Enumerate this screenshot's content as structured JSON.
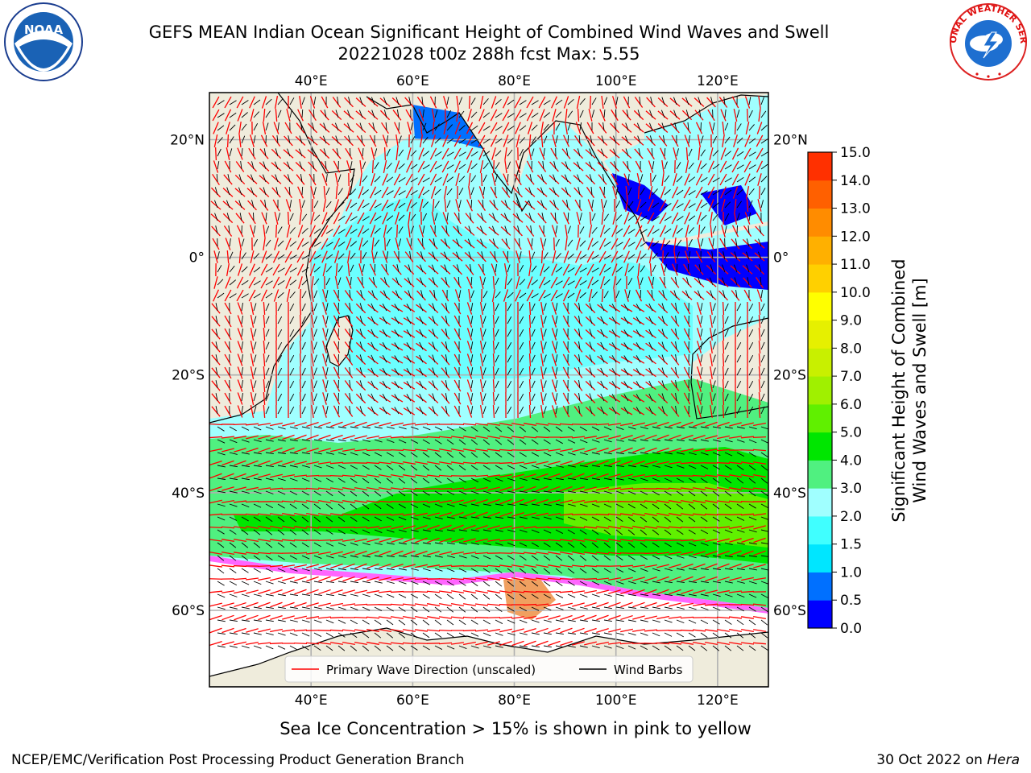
{
  "title": {
    "line1": "GEFS MEAN Indian Ocean Significant Height of Combined Wind Waves and Swell",
    "line2": "20221028 t00z 288h fcst   Max: 5.55"
  },
  "logos": {
    "left": {
      "name": "noaa-logo",
      "text": "NOAA",
      "ring_text": "NATIONAL OCEANIC AND ATMOSPHERIC ADMINISTRATION · U.S. DEPARTMENT OF COMMERCE"
    },
    "right": {
      "name": "nws-logo",
      "ring_text": "NATIONAL WEATHER SERVICE"
    }
  },
  "map": {
    "lon_range": [
      20,
      130
    ],
    "lat_range": [
      -73,
      28
    ],
    "lon_ticks": [
      {
        "value": 40,
        "label": "40°E"
      },
      {
        "value": 60,
        "label": "60°E"
      },
      {
        "value": 80,
        "label": "80°E"
      },
      {
        "value": 100,
        "label": "100°E"
      },
      {
        "value": 120,
        "label": "120°E"
      }
    ],
    "lat_ticks": [
      {
        "value": 20,
        "label": "20°N"
      },
      {
        "value": 0,
        "label": "0°"
      },
      {
        "value": -20,
        "label": "20°S"
      },
      {
        "value": -40,
        "label": "40°S"
      },
      {
        "value": -60,
        "label": "60°S"
      }
    ],
    "land_color": "#efecdc",
    "grid": true,
    "legend": {
      "position": "bottom-center",
      "items": [
        {
          "label": "Primary Wave Direction (unscaled)",
          "color": "#ff0000"
        },
        {
          "label": "Wind Barbs",
          "color": "#000000"
        }
      ]
    }
  },
  "colorbar": {
    "label_line1": "Significant Height of Combined",
    "label_line2": "Wind Waves and Swell [m]",
    "ticks": [
      "0.0",
      "0.5",
      "1.0",
      "1.5",
      "2.0",
      "3.0",
      "4.0",
      "5.0",
      "6.0",
      "7.0",
      "8.0",
      "9.0",
      "10.0",
      "11.0",
      "12.0",
      "13.0",
      "14.0",
      "15.0"
    ],
    "colors": [
      "#0000ff",
      "#0070ff",
      "#00e6ff",
      "#40ffff",
      "#a0ffff",
      "#50f080",
      "#00e600",
      "#60f000",
      "#a0f000",
      "#c8f000",
      "#e6f000",
      "#ffff00",
      "#ffd000",
      "#ffb000",
      "#ff8c00",
      "#ff6000",
      "#ff3000"
    ]
  },
  "footer": {
    "note": "Sea Ice Concentration > 15% is shown in pink to yellow",
    "left": "NCEP/EMC/Verification Post Processing Product Generation Branch",
    "right_prefix": "30 Oct 2022 on ",
    "right_host": "Hera"
  }
}
